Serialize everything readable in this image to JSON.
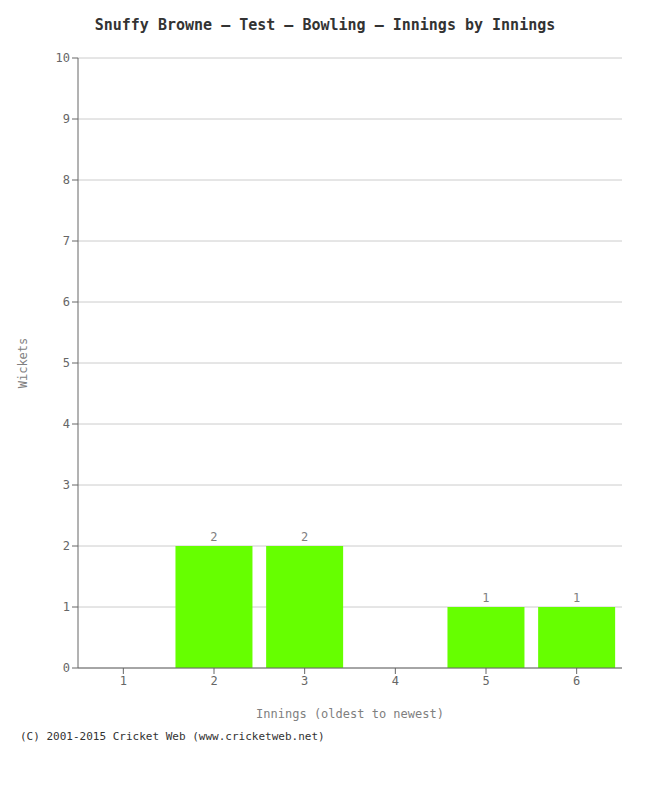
{
  "chart_data": {
    "type": "bar",
    "title": "Snuffy Browne – Test – Bowling – Innings by Innings",
    "xlabel": "Innings (oldest to newest)",
    "ylabel": "Wickets",
    "categories": [
      "1",
      "2",
      "3",
      "4",
      "5",
      "6"
    ],
    "values": [
      0,
      2,
      2,
      0,
      1,
      1
    ],
    "color": "#66ff00",
    "ylim": [
      0,
      10
    ],
    "yticks": [
      0,
      1,
      2,
      3,
      4,
      5,
      6,
      7,
      8,
      9,
      10
    ],
    "grid": true,
    "data_labels": true,
    "annotations": [
      "(C) 2001-2015 Cricket Web (www.cricketweb.net)"
    ]
  }
}
